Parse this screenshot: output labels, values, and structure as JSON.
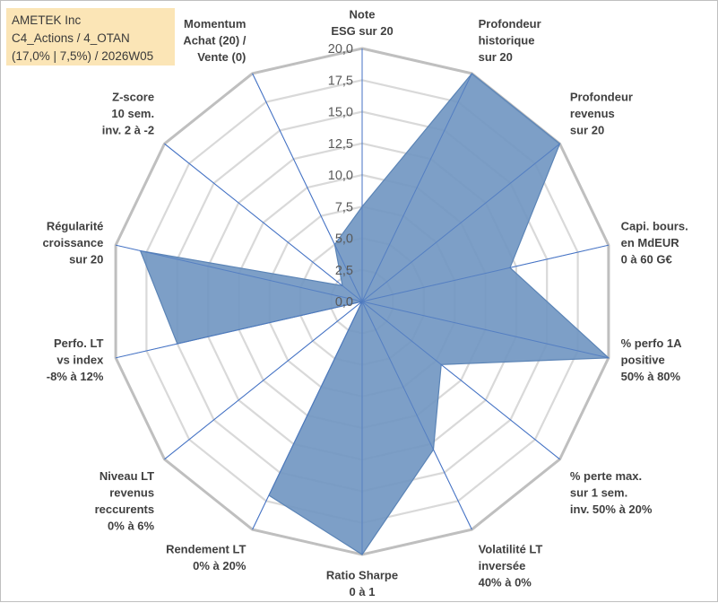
{
  "header": {
    "company": "AMETEK Inc",
    "portfolio": "C4_Actions / 4_OTAN",
    "params": "(17,0% | 7,5%) / 2026W05"
  },
  "chart_data": {
    "type": "radar",
    "rmax": 20,
    "ticks": [
      "0,0",
      "2,5",
      "5,0",
      "7,5",
      "10,0",
      "12,5",
      "15,0",
      "17,5",
      "20,0"
    ],
    "axes": [
      {
        "lines": [
          "Note",
          "ESG sur 20"
        ],
        "value": 7.5
      },
      {
        "lines": [
          "Profondeur",
          "historique",
          "sur 20"
        ],
        "value": 20
      },
      {
        "lines": [
          "Profondeur",
          "revenus",
          "sur 20"
        ],
        "value": 20
      },
      {
        "lines": [
          "Capi. bours.",
          "en MdEUR",
          "0 à 60 G€"
        ],
        "value": 12
      },
      {
        "lines": [
          "% perfo 1A",
          "positive",
          "50% à 80%"
        ],
        "value": 20
      },
      {
        "lines": [
          "% perte max.",
          "sur 1 sem.",
          "inv. 50% à 20%"
        ],
        "value": 8
      },
      {
        "lines": [
          "Volatilité LT",
          "inversée",
          "40% à 0%"
        ],
        "value": 13
      },
      {
        "lines": [
          "Ratio Sharpe",
          "0 à 1"
        ],
        "value": 20
      },
      {
        "lines": [
          "Rendement LT",
          "0% à 20%"
        ],
        "value": 17
      },
      {
        "lines": [
          "Niveau LT",
          "revenus",
          "reccurents",
          "0% à 6%"
        ],
        "value": 0
      },
      {
        "lines": [
          "Perfo. LT",
          "vs index",
          "-8% à 12%"
        ],
        "value": 15
      },
      {
        "lines": [
          "Régularité",
          "croissance",
          "sur 20"
        ],
        "value": 18
      },
      {
        "lines": [
          "Z-score",
          "10 sem.",
          "inv. 2 à -2"
        ],
        "value": 2
      },
      {
        "lines": [
          "Momentum",
          "Achat (20) /",
          "Vente (0)"
        ],
        "value": 5
      }
    ],
    "colors": {
      "fill": "#6f95c1",
      "stroke": "#5b84b6",
      "spoke": "#4472c4",
      "grid_outer": "#bfbfbf",
      "grid_inner": "#d9d9d9"
    }
  }
}
